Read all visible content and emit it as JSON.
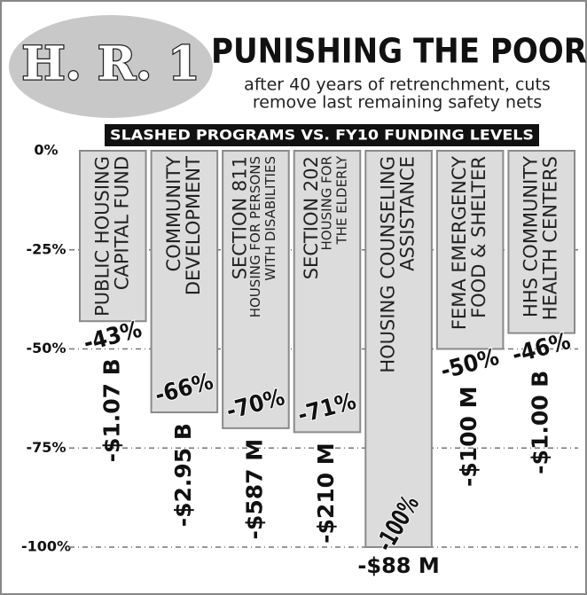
{
  "chart_data": {
    "type": "bar",
    "badge": "H. R. 1",
    "title": "PUNISHING THE POOR",
    "subtitle": [
      "after 40 years of retrenchment, cuts",
      "remove last remaining safety nets"
    ],
    "chart_title": "SLASHED PROGRAMS VS. FY10 FUNDING LEVELS",
    "categories": [
      [
        "PUBLIC HOUSING",
        "CAPITAL FUND"
      ],
      [
        "COMMUNITY",
        "DEVELOPMENT"
      ],
      [
        "SECTION 811",
        "HOUSING FOR PERSONS",
        "WITH DISABILITIES"
      ],
      [
        "SECTION 202",
        "HOUSING FOR",
        "THE ELDERLY"
      ],
      [
        "HOUSING COUNSELING",
        "ASSISTANCE"
      ],
      [
        "FEMA EMERGENCY",
        "FOOD & SHELTER"
      ],
      [
        "HHS COMMUNITY",
        "HEALTH CENTERS"
      ]
    ],
    "values": [
      -43,
      -66,
      -70,
      -71,
      -100,
      -50,
      -46
    ],
    "value_labels": [
      "-43%",
      "-66%",
      "-70%",
      "-71%",
      "-100%",
      "-50%",
      "-46%"
    ],
    "amounts": [
      "-$1.07 B",
      "-$2.95 B",
      "-$587 M",
      "-$210 M",
      "-$88 M",
      "-$100 M",
      "-$1.00 B"
    ],
    "color": "#dcdcdc",
    "ylim": [
      -100,
      0
    ],
    "yticks": [
      {
        "value": 0,
        "label": "0%"
      },
      {
        "value": -25,
        "label": "-25%"
      },
      {
        "value": -50,
        "label": "-50%"
      },
      {
        "value": -75,
        "label": "-75%"
      },
      {
        "value": -100,
        "label": "-100%"
      }
    ],
    "grid": true
  }
}
